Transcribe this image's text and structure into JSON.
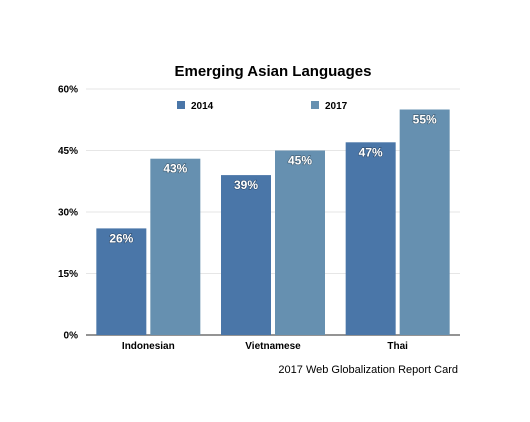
{
  "chart_data": {
    "type": "bar",
    "title": "Emerging Asian Languages",
    "xlabel": "",
    "ylabel": "",
    "categories": [
      "Indonesian",
      "Vietnamese",
      "Thai"
    ],
    "series": [
      {
        "name": "2014",
        "values": [
          26,
          39,
          47
        ],
        "labels": [
          "26%",
          "39%",
          "47%"
        ],
        "color": "#4a76a8"
      },
      {
        "name": "2017",
        "values": [
          43,
          45,
          55
        ],
        "labels": [
          "43%",
          "45%",
          "55%"
        ],
        "color": "#6690b0"
      }
    ],
    "ylim": [
      0,
      60
    ],
    "yticks": [
      0,
      15,
      30,
      45,
      60
    ],
    "ytick_labels": [
      "0%",
      "15%",
      "30%",
      "45%",
      "60%"
    ],
    "grid": true,
    "legend_position": "top"
  },
  "footer": {
    "source": "2017 Web Globalization Report Card"
  }
}
